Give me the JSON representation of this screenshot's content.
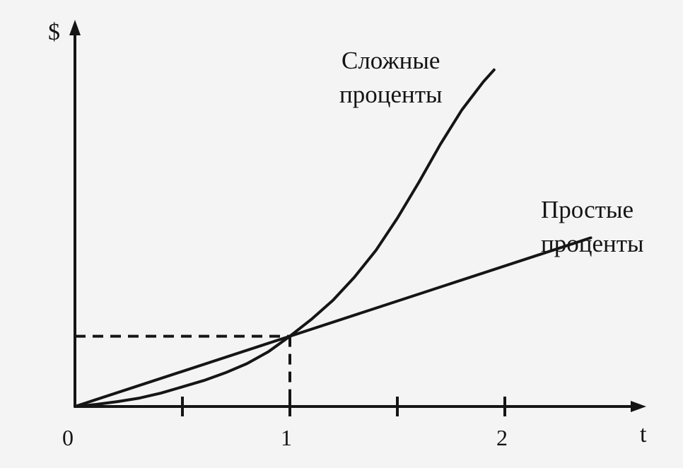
{
  "chart_data": {
    "type": "line",
    "title": "",
    "xlabel": "t",
    "ylabel": "$",
    "xlim": [
      0,
      2.5
    ],
    "ylim": [
      0,
      5.05
    ],
    "grid": false,
    "legend": "none",
    "x_ticks": [
      0.5,
      1,
      1.5,
      2
    ],
    "x_tick_labels": [
      {
        "value": 0,
        "label": "0"
      },
      {
        "value": 1,
        "label": "1"
      },
      {
        "value": 2,
        "label": "2"
      }
    ],
    "series": [
      {
        "x": [
          0,
          0.1,
          0.2,
          0.3,
          0.4,
          0.5,
          0.6,
          0.7,
          0.8,
          0.9,
          1,
          1.1,
          1.2,
          1.3,
          1.4,
          1.5,
          1.6,
          1.7,
          1.8,
          1.9,
          1.95
        ],
        "values": [
          0,
          0.03,
          0.07,
          0.12,
          0.19,
          0.28,
          0.37,
          0.48,
          0.61,
          0.78,
          1,
          1.24,
          1.51,
          1.84,
          2.22,
          2.68,
          3.19,
          3.73,
          4.22,
          4.62,
          4.79
        ]
      },
      {
        "x": [
          0,
          1,
          2.4
        ],
        "values": [
          0,
          1,
          2.4
        ]
      }
    ],
    "reference_lines": [
      {
        "x": 1,
        "y": 1
      }
    ],
    "annotations": [
      {
        "lines": [
          "Сложные",
          "проценты"
        ],
        "series": 0
      },
      {
        "lines": [
          "Простые",
          "проценты"
        ],
        "series": 1
      }
    ]
  }
}
